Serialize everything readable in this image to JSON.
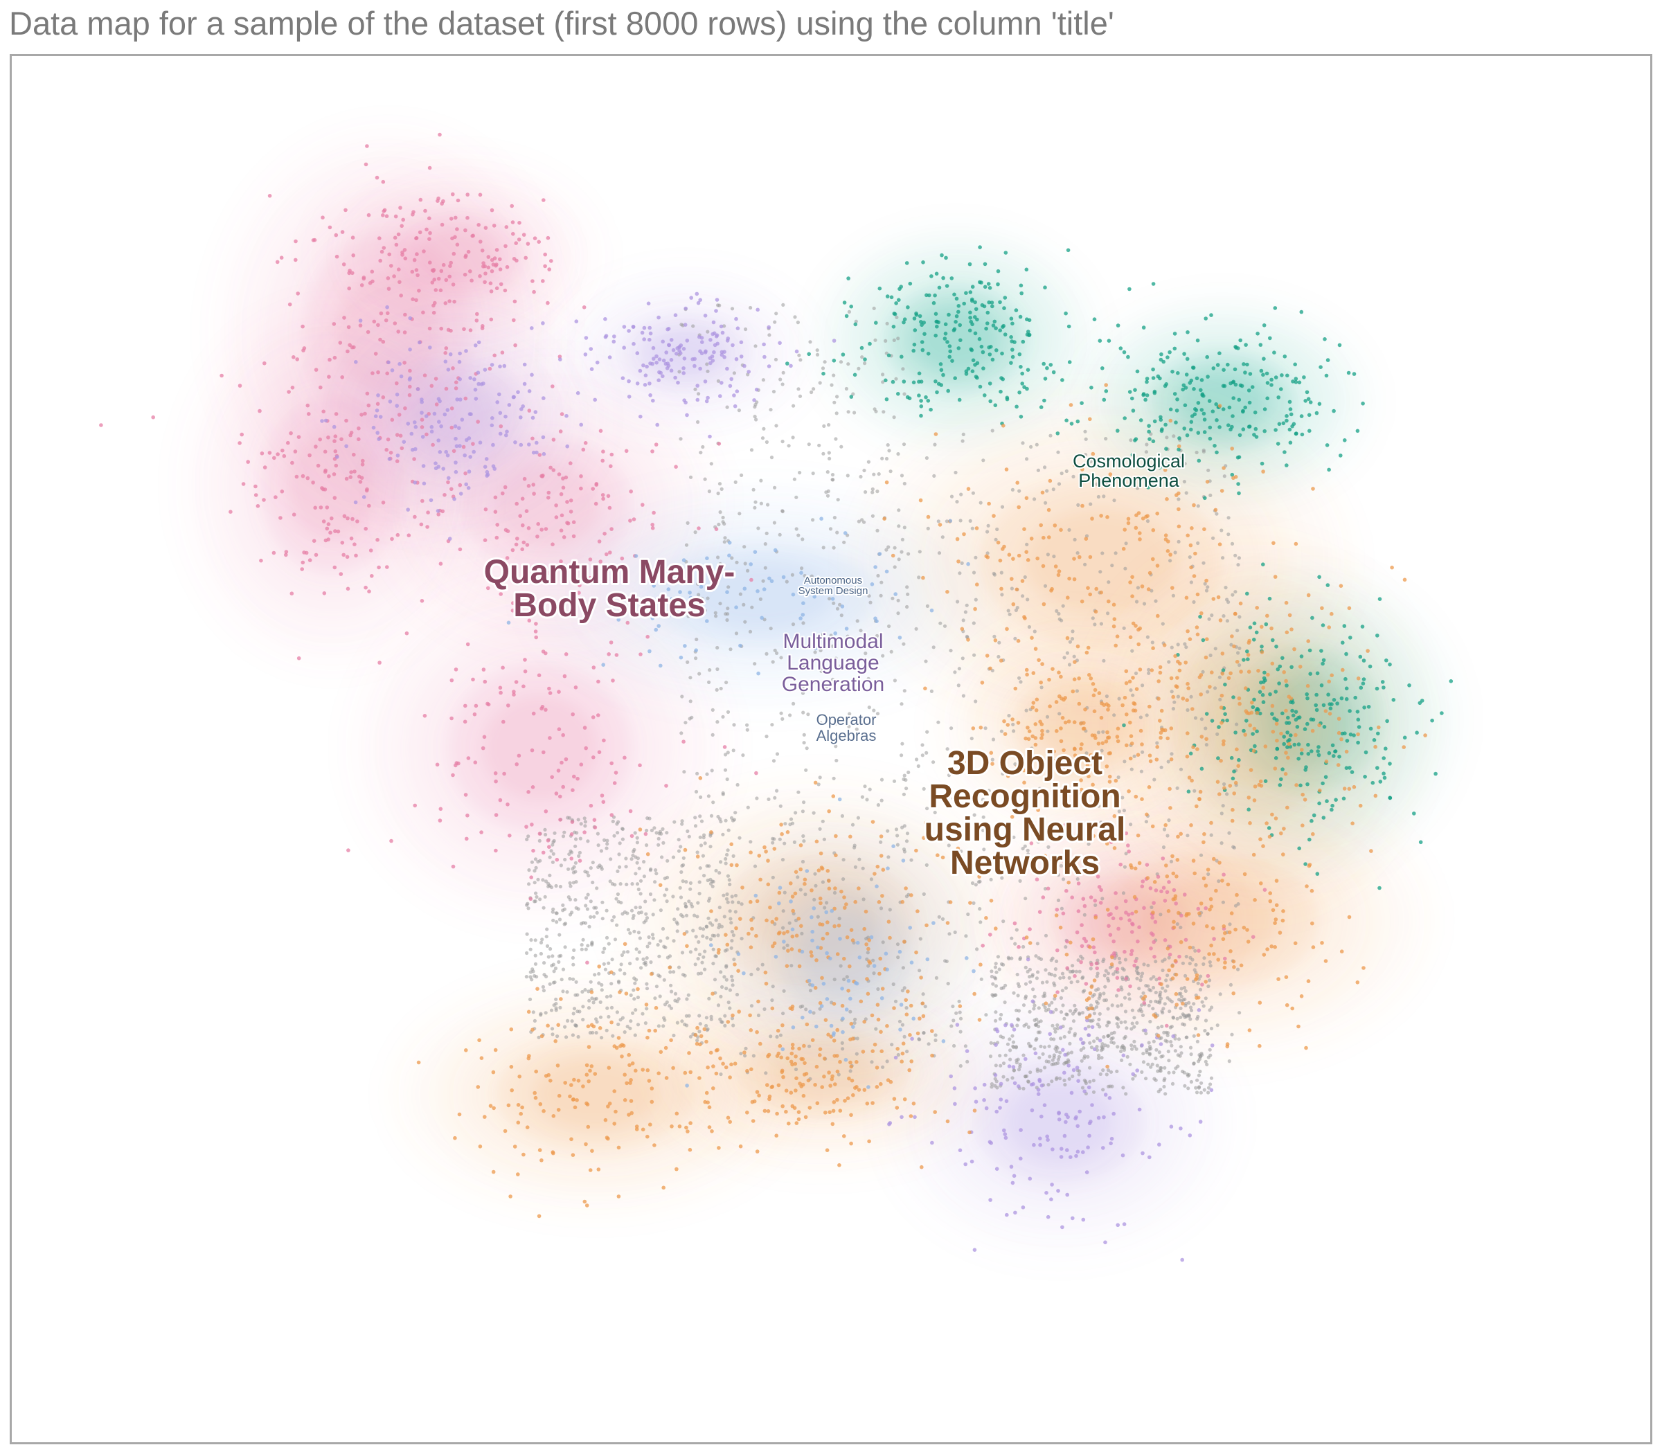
{
  "title": "Data map for a sample of the dataset (first 8000 rows) using the column 'title'",
  "chart_data": {
    "type": "scatter",
    "title": "Data map for a sample of the dataset (first 8000 rows) using the column 'title'",
    "xlabel": "",
    "ylabel": "",
    "grid": false,
    "legend": "none",
    "noise_color": "#999999",
    "clusters": [
      {
        "color": "#e57fa6",
        "points": 850
      },
      {
        "color": "#ad95e0",
        "points": 480
      },
      {
        "color": "#16a085",
        "points": 720
      },
      {
        "color": "#ec9a4e",
        "points": 1250
      },
      {
        "color": "#8fb4e4",
        "points": 140
      }
    ],
    "labels": [
      {
        "text": [
          "Quantum Many-",
          "Body States"
        ],
        "color": "#8b4963"
      },
      {
        "text": [
          "Cosmological",
          "Phenomena"
        ],
        "color": "#0e4e40"
      },
      {
        "text": [
          "Autonomous",
          "System Design"
        ],
        "color": "#4d6687"
      },
      {
        "text": [
          "Multimodal",
          "Language",
          "Generation"
        ],
        "color": "#7a5e9b"
      },
      {
        "text": [
          "Operator",
          "Algebras"
        ],
        "color": "#5a6f8f"
      },
      {
        "text": [
          "3D Object",
          "Recognition",
          "using Neural",
          "Networks"
        ],
        "color": "#7a4b24"
      }
    ]
  }
}
